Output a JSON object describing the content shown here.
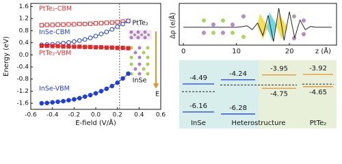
{
  "chart_data": [
    {
      "type": "line",
      "y_label": "Energy (eV)",
      "x_label": "E-field (V/Å)",
      "x": [
        -0.5,
        -0.45,
        -0.4,
        -0.35,
        -0.3,
        -0.25,
        -0.2,
        -0.15,
        -0.1,
        -0.05,
        0,
        0.05,
        0.1,
        0.15,
        0.2,
        0.25,
        0.3
      ],
      "series": [
        {
          "name": "PtTe₂-CBM",
          "color": "#e02a2a",
          "marker": "square",
          "filled": false,
          "values": [
            0.98,
            0.99,
            0.99,
            1.0,
            1.0,
            1.01,
            1.01,
            1.02,
            1.02,
            1.03,
            1.04,
            1.05,
            1.06,
            1.07,
            1.08,
            1.1,
            1.12
          ]
        },
        {
          "name": "InSe-CBM",
          "color": "#1f3fd6",
          "marker": "circle",
          "filled": false,
          "values": [
            0.33,
            0.34,
            0.35,
            0.37,
            0.39,
            0.41,
            0.44,
            0.47,
            0.51,
            0.56,
            0.62,
            0.69,
            0.76,
            0.84,
            0.93,
            1.02,
            1.12
          ]
        },
        {
          "name": "PtTe₂-VBM",
          "color": "#e02a2a",
          "marker": "square",
          "filled": true,
          "values": [
            0.3,
            0.3,
            0.29,
            0.29,
            0.28,
            0.28,
            0.27,
            0.27,
            0.26,
            0.26,
            0.25,
            0.25,
            0.24,
            0.24,
            0.23,
            0.23,
            0.22
          ]
        },
        {
          "name": "InSe-VBM",
          "color": "#1f3fd6",
          "marker": "circle",
          "filled": true,
          "values": [
            -1.6,
            -1.59,
            -1.57,
            -1.55,
            -1.53,
            -1.5,
            -1.47,
            -1.43,
            -1.38,
            -1.33,
            -1.27,
            -1.2,
            -1.12,
            -1.03,
            -0.92,
            -0.78,
            -0.62
          ]
        }
      ],
      "vlines": [
        0.22
      ],
      "xlim": [
        -0.6,
        0.6
      ],
      "xticks": [
        -0.6,
        -0.4,
        -0.2,
        {
          "value": 0,
          "label": "0.0"
        },
        0.2,
        0.4,
        0.6
      ],
      "ylim": [
        -1.8,
        1.7
      ],
      "yticks": [
        1.6,
        1.2,
        0.8,
        0.4,
        {
          "value": 0,
          "label": "0.0"
        },
        -0.4,
        -0.8,
        -1.2,
        -1.6
      ],
      "inset_labels": [
        "PtTe₂",
        "InSe",
        "E"
      ]
    },
    {
      "type": "profile",
      "y_label": "Δρ (e/Å)",
      "x_label": "z (Å)",
      "x": [
        0,
        1,
        2,
        3,
        4,
        5,
        6,
        7,
        8,
        9,
        10,
        11,
        12,
        13,
        14,
        15,
        16,
        17,
        18,
        19,
        20,
        21,
        22,
        23,
        24,
        25,
        26,
        27,
        28
      ],
      "values": [
        0,
        0,
        0,
        0,
        0,
        0,
        0,
        0,
        0,
        0,
        0,
        0.02,
        0.06,
        -0.1,
        0.18,
        -0.35,
        0.5,
        -0.6,
        0.8,
        -0.55,
        0.65,
        -0.45,
        0.3,
        -0.1,
        0.03,
        0,
        0,
        0,
        0
      ],
      "color": "#222222",
      "xlim": [
        -0.8,
        28.9
      ],
      "xticks": [
        0,
        10,
        20
      ],
      "ylim": [
        -0.75,
        1.0
      ]
    },
    {
      "type": "band_alignment",
      "ylim": [
        -6.45,
        -3.15
      ],
      "columns": [
        {
          "label": "InSe",
          "fermi": -4.95,
          "levels": [
            {
              "value": -4.49,
              "color": "#1f3fd6"
            },
            {
              "value": -6.16,
              "color": "#1f3fd6"
            }
          ]
        },
        {
          "label": "Heterostructure",
          "fermi": -4.55,
          "levels": [
            {
              "value": -4.24,
              "color": "#1f3fd6"
            },
            {
              "value": -6.28,
              "color": "#1f3fd6"
            },
            {
              "value": -3.95,
              "color": "#e8922a"
            },
            {
              "value": -4.75,
              "color": "#e8922a"
            }
          ]
        },
        {
          "label": "PtTe₂",
          "fermi": -4.5,
          "levels": [
            {
              "value": -3.92,
              "color": "#e8922a"
            },
            {
              "value": -4.65,
              "color": "#e8922a"
            }
          ]
        }
      ]
    }
  ]
}
